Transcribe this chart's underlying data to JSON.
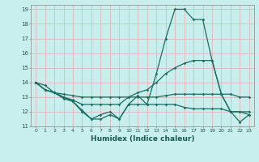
{
  "xlabel": "Humidex (Indice chaleur)",
  "bg_color": "#c8eeed",
  "grid_color": "#e0b8b8",
  "line_color": "#1a6e62",
  "xlim": [
    -0.5,
    23.5
  ],
  "ylim": [
    11,
    19.3
  ],
  "yticks": [
    11,
    12,
    13,
    14,
    15,
    16,
    17,
    18,
    19
  ],
  "xticks": [
    0,
    1,
    2,
    3,
    4,
    5,
    6,
    7,
    8,
    9,
    10,
    11,
    12,
    13,
    14,
    15,
    16,
    17,
    18,
    19,
    20,
    21,
    22,
    23
  ],
  "lines": [
    [
      14.0,
      13.8,
      13.3,
      12.9,
      12.7,
      12.0,
      11.5,
      11.8,
      12.0,
      11.5,
      12.5,
      13.1,
      12.5,
      14.6,
      17.0,
      19.0,
      19.0,
      18.3,
      18.3,
      15.5,
      13.2,
      12.0,
      11.3,
      11.8
    ],
    [
      14.0,
      13.5,
      13.3,
      13.0,
      12.8,
      12.5,
      12.5,
      12.5,
      12.5,
      12.5,
      13.0,
      13.3,
      13.5,
      14.0,
      14.6,
      15.0,
      15.3,
      15.5,
      15.5,
      15.5,
      13.2,
      12.0,
      12.0,
      12.0
    ],
    [
      14.0,
      13.5,
      13.3,
      13.2,
      13.1,
      13.0,
      13.0,
      13.0,
      13.0,
      13.0,
      13.0,
      13.0,
      13.0,
      13.0,
      13.1,
      13.2,
      13.2,
      13.2,
      13.2,
      13.2,
      13.2,
      13.2,
      13.0,
      13.0
    ],
    [
      14.0,
      13.5,
      13.3,
      13.0,
      12.7,
      12.1,
      11.5,
      11.5,
      11.8,
      11.5,
      12.5,
      12.5,
      12.5,
      12.5,
      12.5,
      12.5,
      12.3,
      12.2,
      12.2,
      12.2,
      12.2,
      12.0,
      12.0,
      11.8
    ]
  ]
}
